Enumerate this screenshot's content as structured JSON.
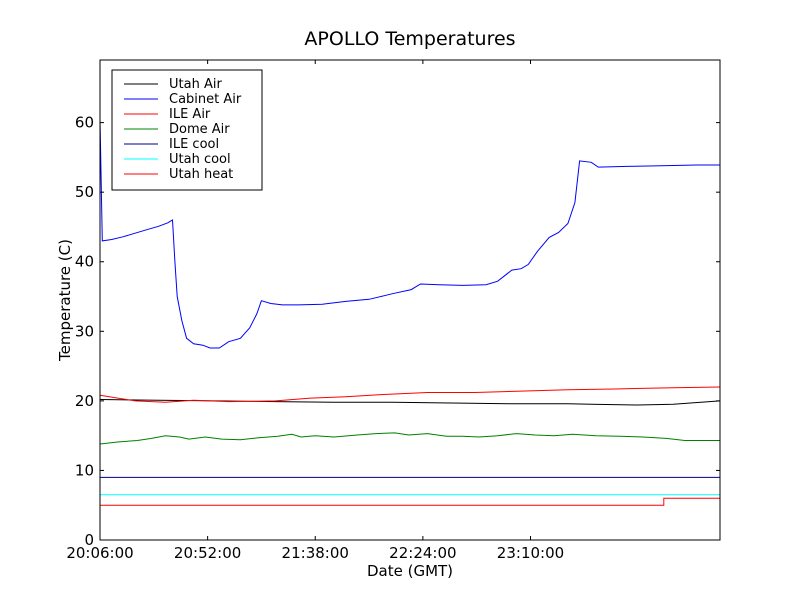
{
  "chart_data": {
    "type": "line",
    "title": "APOLLO Temperatures",
    "xlabel": "Date (GMT)",
    "ylabel": "Temperature (C)",
    "xlim": [
      0,
      265
    ],
    "ylim": [
      0,
      69
    ],
    "x_unit": "minutes since 20:06:00",
    "xticks": [
      {
        "value": 0,
        "label": "20:06:00"
      },
      {
        "value": 46,
        "label": "20:52:00"
      },
      {
        "value": 92,
        "label": "21:38:00"
      },
      {
        "value": 138,
        "label": "22:24:00"
      },
      {
        "value": 184,
        "label": "23:10:00"
      }
    ],
    "yticks": [
      0,
      10,
      20,
      30,
      40,
      50,
      60
    ],
    "grid": false,
    "legend_position": "top-left",
    "series": [
      {
        "name": "Utah Air",
        "color": "#000000",
        "points": [
          [
            0,
            20.2
          ],
          [
            25,
            20.1
          ],
          [
            50,
            20
          ],
          [
            75,
            19.9
          ],
          [
            100,
            19.8
          ],
          [
            125,
            19.8
          ],
          [
            150,
            19.7
          ],
          [
            175,
            19.6
          ],
          [
            200,
            19.6
          ],
          [
            210,
            19.5
          ],
          [
            230,
            19.4
          ],
          [
            245,
            19.5
          ],
          [
            265,
            20
          ]
        ]
      },
      {
        "name": "Cabinet Air",
        "color": "#0000ff",
        "points": [
          [
            0,
            60.5
          ],
          [
            1,
            43
          ],
          [
            5,
            43.2
          ],
          [
            10,
            43.6
          ],
          [
            15,
            44.1
          ],
          [
            20,
            44.6
          ],
          [
            25,
            45.1
          ],
          [
            29,
            45.6
          ],
          [
            31,
            46
          ],
          [
            32,
            40
          ],
          [
            33,
            35
          ],
          [
            35,
            31.5
          ],
          [
            37,
            29
          ],
          [
            40,
            28.2
          ],
          [
            44,
            28
          ],
          [
            47,
            27.6
          ],
          [
            51,
            27.6
          ],
          [
            55,
            28.5
          ],
          [
            60,
            29
          ],
          [
            64,
            30.5
          ],
          [
            67,
            32.5
          ],
          [
            69,
            34.4
          ],
          [
            73,
            34
          ],
          [
            78,
            33.8
          ],
          [
            85,
            33.8
          ],
          [
            95,
            33.9
          ],
          [
            105,
            34.3
          ],
          [
            115,
            34.6
          ],
          [
            125,
            35.4
          ],
          [
            133,
            36
          ],
          [
            137,
            36.8
          ],
          [
            145,
            36.7
          ],
          [
            155,
            36.6
          ],
          [
            165,
            36.7
          ],
          [
            170,
            37.2
          ],
          [
            176,
            38.8
          ],
          [
            180,
            39
          ],
          [
            183,
            39.6
          ],
          [
            187,
            41.5
          ],
          [
            192,
            43.5
          ],
          [
            196,
            44.2
          ],
          [
            200,
            45.5
          ],
          [
            203,
            48.5
          ],
          [
            205,
            54.5
          ],
          [
            210,
            54.3
          ],
          [
            213,
            53.6
          ],
          [
            225,
            53.7
          ],
          [
            240,
            53.8
          ],
          [
            255,
            53.9
          ],
          [
            265,
            53.9
          ]
        ]
      },
      {
        "name": "ILE Air",
        "color": "#ff0000",
        "points": [
          [
            0,
            20.8
          ],
          [
            15,
            20
          ],
          [
            28,
            19.8
          ],
          [
            40,
            20.1
          ],
          [
            55,
            19.9
          ],
          [
            75,
            20
          ],
          [
            90,
            20.4
          ],
          [
            105,
            20.6
          ],
          [
            120,
            20.9
          ],
          [
            140,
            21.2
          ],
          [
            160,
            21.2
          ],
          [
            180,
            21.4
          ],
          [
            200,
            21.6
          ],
          [
            220,
            21.7
          ],
          [
            245,
            21.9
          ],
          [
            265,
            22
          ]
        ]
      },
      {
        "name": "Dome Air",
        "color": "#008000",
        "points": [
          [
            0,
            13.8
          ],
          [
            8,
            14.1
          ],
          [
            16,
            14.3
          ],
          [
            22,
            14.6
          ],
          [
            28,
            15
          ],
          [
            34,
            14.8
          ],
          [
            38,
            14.5
          ],
          [
            45,
            14.8
          ],
          [
            52,
            14.5
          ],
          [
            60,
            14.4
          ],
          [
            68,
            14.7
          ],
          [
            76,
            14.9
          ],
          [
            82,
            15.2
          ],
          [
            86,
            14.8
          ],
          [
            92,
            15
          ],
          [
            100,
            14.8
          ],
          [
            110,
            15.1
          ],
          [
            118,
            15.3
          ],
          [
            126,
            15.4
          ],
          [
            132,
            15.1
          ],
          [
            140,
            15.3
          ],
          [
            148,
            14.9
          ],
          [
            155,
            14.9
          ],
          [
            162,
            14.8
          ],
          [
            170,
            15
          ],
          [
            178,
            15.3
          ],
          [
            186,
            15.1
          ],
          [
            194,
            15
          ],
          [
            202,
            15.2
          ],
          [
            212,
            15
          ],
          [
            222,
            14.9
          ],
          [
            232,
            14.8
          ],
          [
            242,
            14.6
          ],
          [
            250,
            14.3
          ],
          [
            258,
            14.3
          ],
          [
            265,
            14.3
          ]
        ]
      },
      {
        "name": "ILE cool",
        "color": "#000080",
        "points": [
          [
            0,
            9
          ],
          [
            265,
            9
          ]
        ]
      },
      {
        "name": "Utah cool",
        "color": "#00ffff",
        "points": [
          [
            0,
            6.5
          ],
          [
            265,
            6.5
          ]
        ]
      },
      {
        "name": "Utah heat",
        "color": "#ff0000",
        "points": [
          [
            0,
            5
          ],
          [
            241,
            5
          ],
          [
            241,
            6
          ],
          [
            265,
            6
          ]
        ]
      }
    ]
  }
}
